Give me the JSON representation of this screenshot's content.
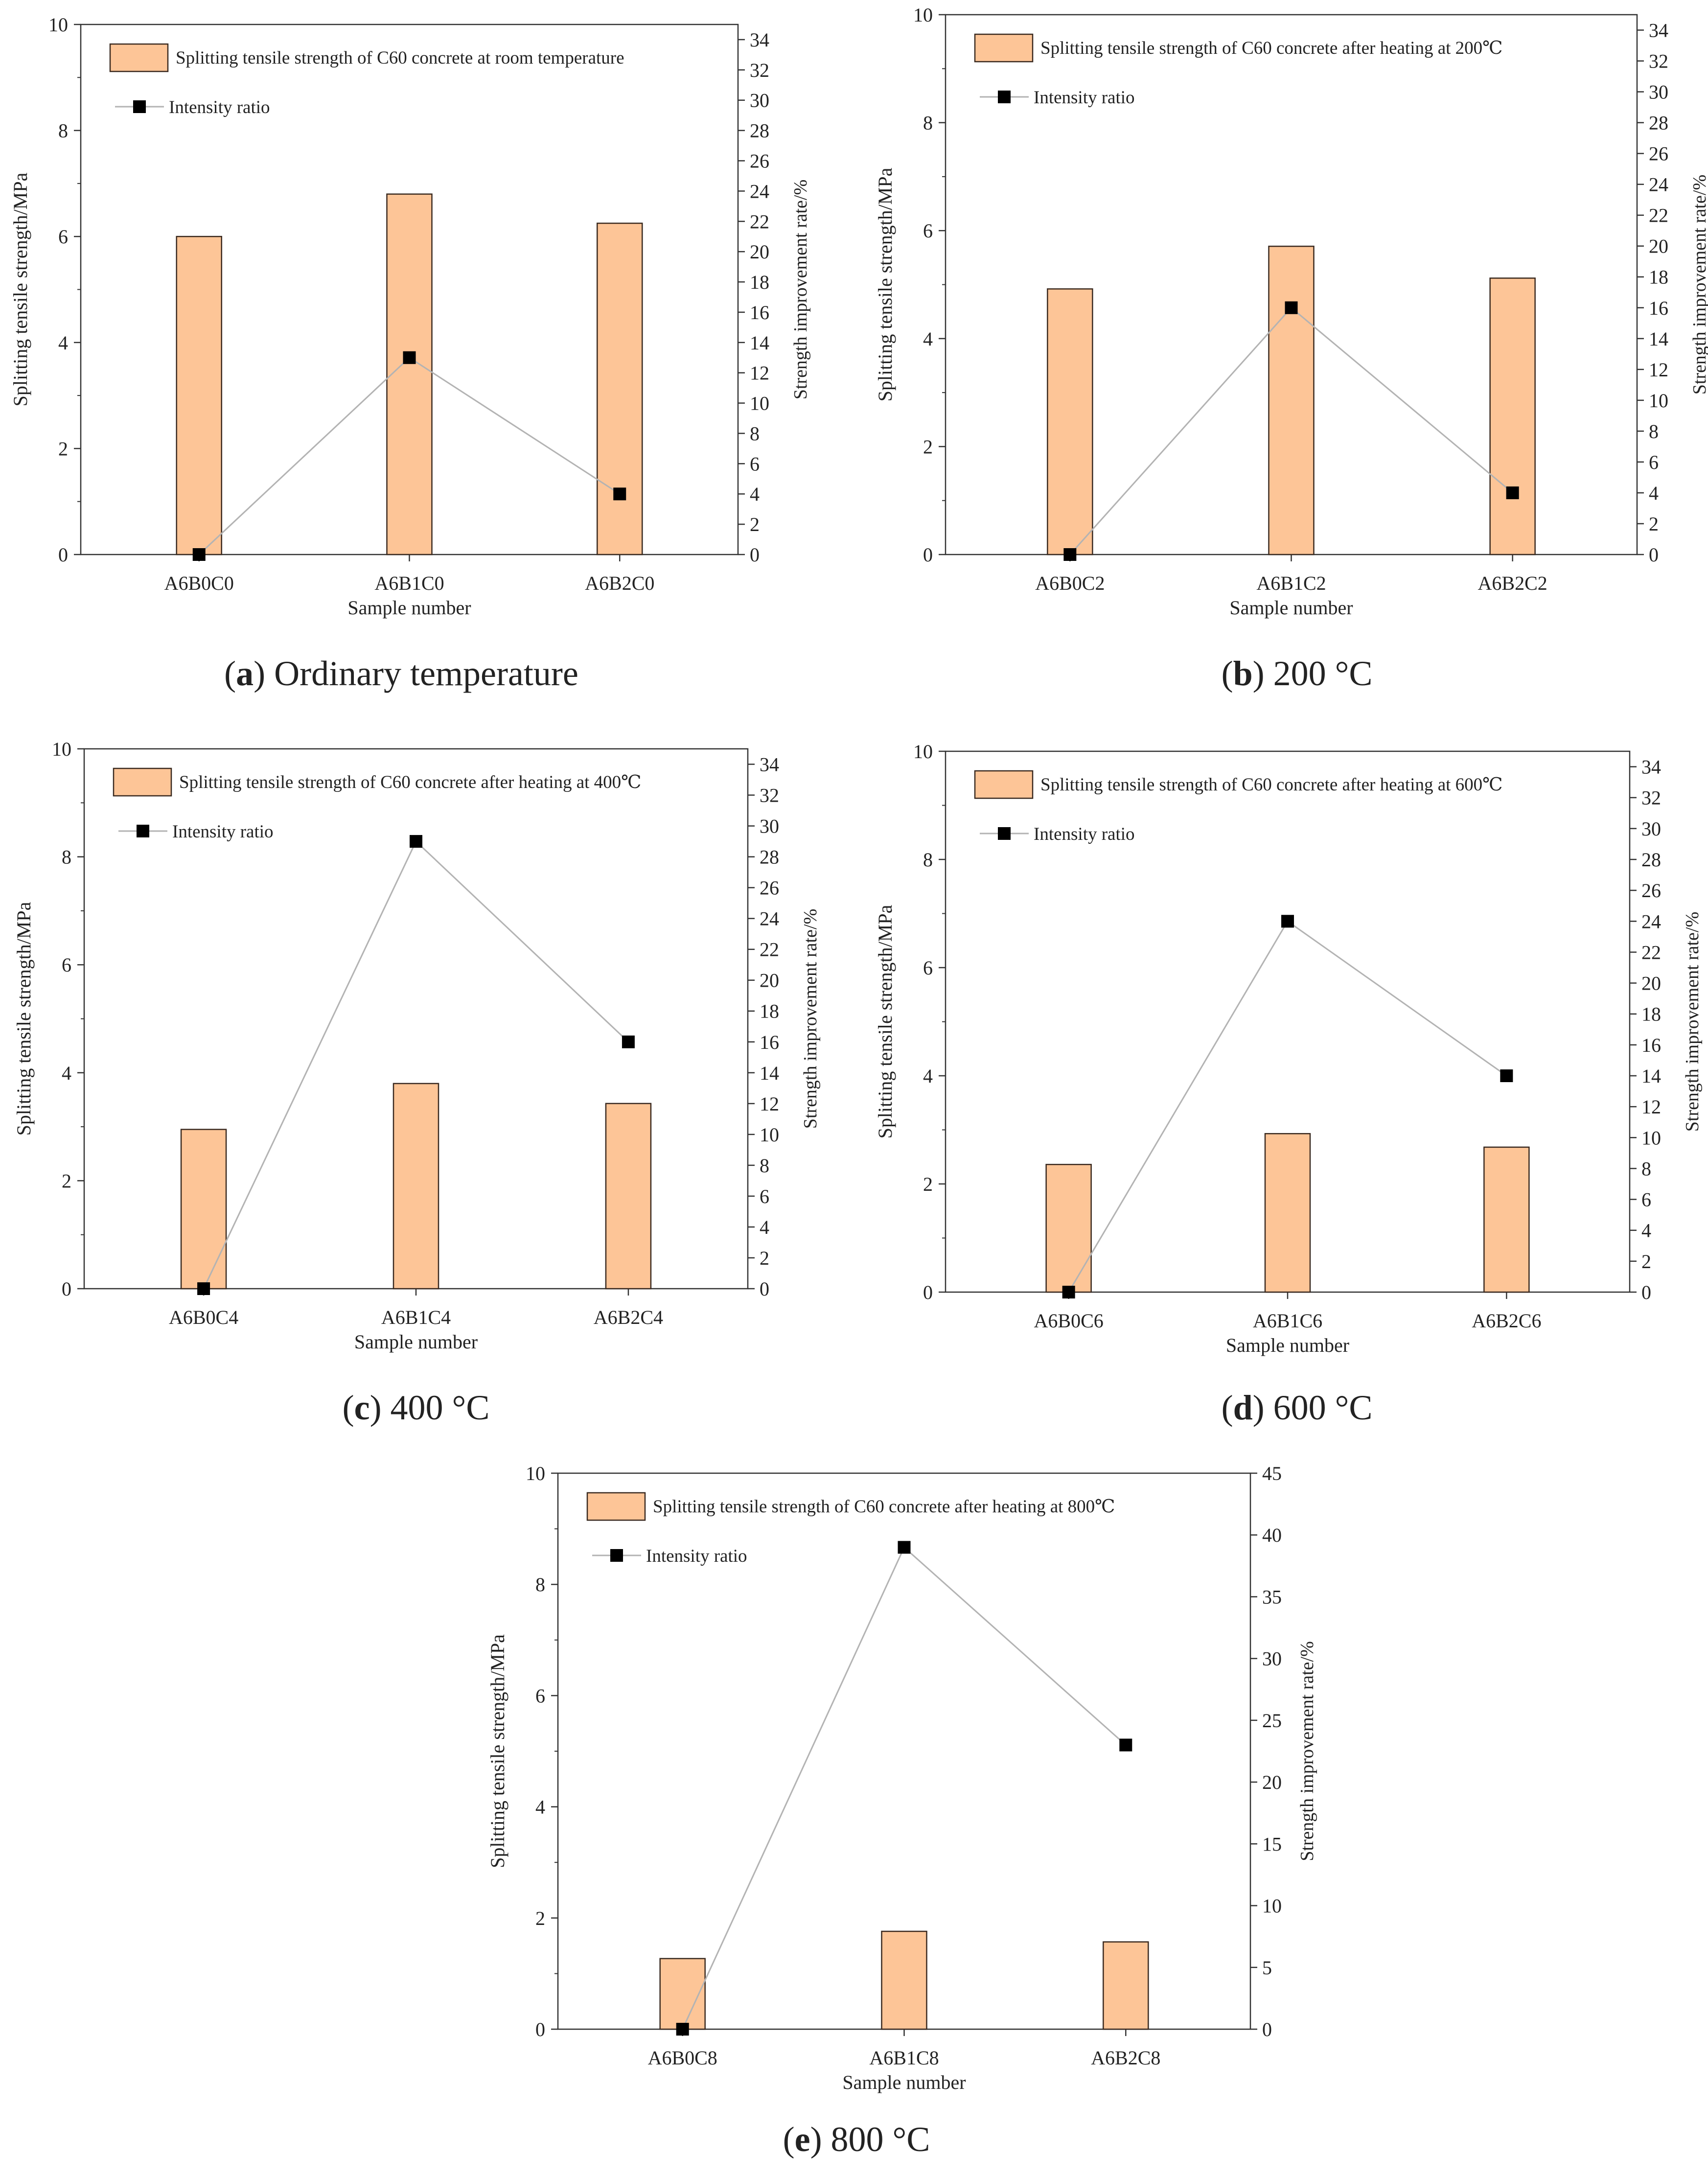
{
  "chart_data": [
    {
      "type": "bar",
      "panel": "a",
      "title": "",
      "caption": {
        "letter": "a",
        "text": "Ordinary temperature"
      },
      "categories": [
        "A6B0C0",
        "A6B1C0",
        "A6B2C0"
      ],
      "xlabel": "Sample number",
      "ylabel": "Splitting tensile strength/MPa",
      "y2label": "Strength improvement rate/%",
      "ylim": [
        0,
        10
      ],
      "y2lim": [
        0,
        35
      ],
      "y2ticks": [
        0,
        2,
        4,
        6,
        8,
        10,
        12,
        14,
        16,
        18,
        20,
        22,
        24,
        26,
        28,
        30,
        32,
        34
      ],
      "bar_series": {
        "name": "Splitting tensile strength of C60 concrete at room temperature",
        "values": [
          6.0,
          6.8,
          6.25
        ]
      },
      "line_series": {
        "name": "Intensity ratio",
        "values": [
          0,
          13,
          4
        ]
      },
      "legend": "top-left"
    },
    {
      "type": "bar",
      "panel": "b",
      "title": "",
      "caption": {
        "letter": "b",
        "text": "200 °C"
      },
      "categories": [
        "A6B0C2",
        "A6B1C2",
        "A6B2C2"
      ],
      "xlabel": "Sample number",
      "ylabel": "Splitting tensile strength/MPa",
      "y2label": "Strength improvement rate/%",
      "ylim": [
        0,
        10
      ],
      "y2lim": [
        0,
        35
      ],
      "y2ticks": [
        0,
        2,
        4,
        6,
        8,
        10,
        12,
        14,
        16,
        18,
        20,
        22,
        24,
        26,
        28,
        30,
        32,
        34
      ],
      "bar_series": {
        "name": "Splitting tensile strength of C60 concrete after heating at 200℃",
        "values": [
          4.92,
          5.71,
          5.12
        ]
      },
      "line_series": {
        "name": "Intensity ratio",
        "values": [
          0,
          16,
          4
        ]
      },
      "legend": "top-left"
    },
    {
      "type": "bar",
      "panel": "c",
      "title": "",
      "caption": {
        "letter": "c",
        "text": "400 °C"
      },
      "categories": [
        "A6B0C4",
        "A6B1C4",
        "A6B2C4"
      ],
      "xlabel": "Sample number",
      "ylabel": "Splitting tensile strength/MPa",
      "y2label": "Strength improvement rate/%",
      "ylim": [
        0,
        10
      ],
      "y2lim": [
        0,
        35
      ],
      "y2ticks": [
        0,
        2,
        4,
        6,
        8,
        10,
        12,
        14,
        16,
        18,
        20,
        22,
        24,
        26,
        28,
        30,
        32,
        34
      ],
      "bar_series": {
        "name": "Splitting tensile strength of C60 concrete after heating at 400℃",
        "values": [
          2.95,
          3.8,
          3.43
        ]
      },
      "line_series": {
        "name": "Intensity ratio",
        "values": [
          0,
          29,
          16
        ]
      },
      "legend": "top-left"
    },
    {
      "type": "bar",
      "panel": "d",
      "title": "",
      "caption": {
        "letter": "d",
        "text": "600 °C"
      },
      "categories": [
        "A6B0C6",
        "A6B1C6",
        "A6B2C6"
      ],
      "xlabel": "Sample number",
      "ylabel": "Splitting tensile strength/MPa",
      "y2label": "Strength improvement rate/%",
      "ylim": [
        0,
        10
      ],
      "y2lim": [
        0,
        35
      ],
      "y2ticks": [
        0,
        2,
        4,
        6,
        8,
        10,
        12,
        14,
        16,
        18,
        20,
        22,
        24,
        26,
        28,
        30,
        32,
        34
      ],
      "bar_series": {
        "name": "Splitting tensile strength of C60 concrete after heating at 600℃",
        "values": [
          2.36,
          2.93,
          2.68
        ]
      },
      "line_series": {
        "name": "Intensity ratio",
        "values": [
          0,
          24,
          14
        ]
      },
      "legend": "top-left"
    },
    {
      "type": "bar",
      "panel": "e",
      "title": "",
      "caption": {
        "letter": "e",
        "text": "800 °C"
      },
      "categories": [
        "A6B0C8",
        "A6B1C8",
        "A6B2C8"
      ],
      "xlabel": "Sample number",
      "ylabel": "Splitting tensile strength/MPa",
      "y2label": "Strength improvement rate/%",
      "ylim": [
        0,
        10
      ],
      "y2lim": [
        0,
        45
      ],
      "y2ticks": [
        0,
        5,
        10,
        15,
        20,
        25,
        30,
        35,
        40,
        45
      ],
      "bar_series": {
        "name": "Splitting tensile strength of C60 concrete after heating at 800℃",
        "values": [
          1.27,
          1.76,
          1.57
        ]
      },
      "line_series": {
        "name": "Intensity ratio",
        "values": [
          0,
          39,
          23
        ]
      },
      "legend": "top-left"
    }
  ],
  "colors": {
    "bar_fill": "#fdc597",
    "bar_stroke": "#3a2a20",
    "line": "#b3b3b3",
    "marker": "#000000",
    "axis": "#333333"
  }
}
